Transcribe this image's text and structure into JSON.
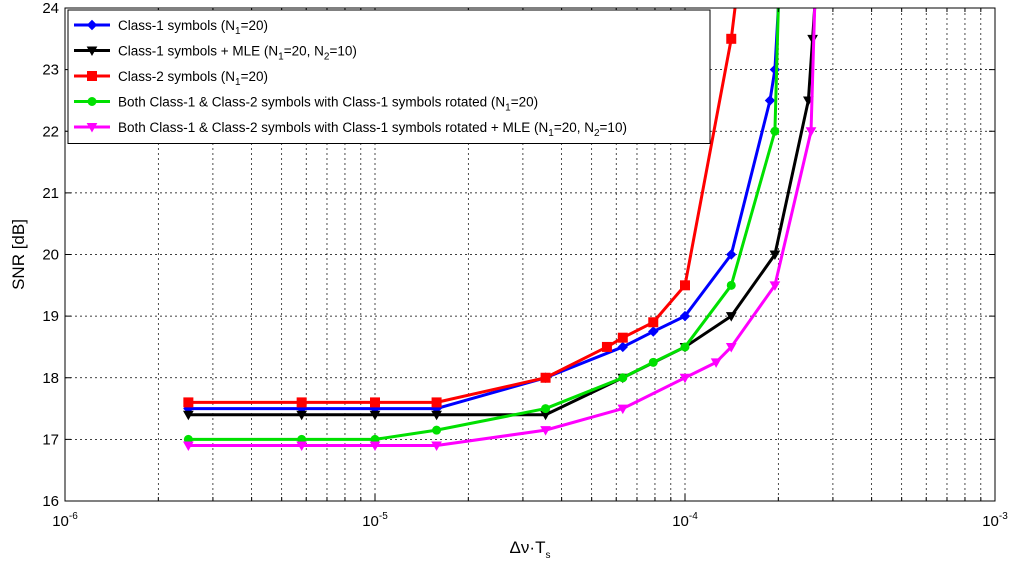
{
  "chart_data": {
    "type": "line",
    "title": "",
    "xlabel": {
      "main": "Δν·T",
      "sub": "s"
    },
    "ylabel": "SNR [dB]",
    "xscale": "log",
    "xlim": [
      1e-06,
      0.001
    ],
    "ylim": [
      16,
      24
    ],
    "grid": true,
    "legend_position": "top-left",
    "x_ticks": [
      {
        "value": 1e-06,
        "base": "10",
        "exp": "-6"
      },
      {
        "value": 1e-05,
        "base": "10",
        "exp": "-5"
      },
      {
        "value": 0.0001,
        "base": "10",
        "exp": "-4"
      },
      {
        "value": 0.001,
        "base": "10",
        "exp": "-3"
      }
    ],
    "y_ticks": [
      "16",
      "17",
      "18",
      "19",
      "20",
      "21",
      "22",
      "23",
      "24"
    ],
    "series": [
      {
        "legend": [
          [
            "Class-1 symbols (N",
            ""
          ],
          [
            "1",
            "sub"
          ],
          [
            "=20)",
            ""
          ]
        ],
        "color": "#0000ff",
        "marker": "diamond",
        "x": [
          2.5e-06,
          5.8e-06,
          1e-05,
          1.58e-05,
          3.55e-05,
          6.3e-05,
          7.9e-05,
          0.0001,
          0.000141,
          0.000188,
          0.000195,
          0.0002
        ],
        "y": [
          17.5,
          17.5,
          17.5,
          17.5,
          18.0,
          18.5,
          18.75,
          19.0,
          20.0,
          22.5,
          23.0,
          24.0
        ]
      },
      {
        "legend": [
          [
            "Class-1 symbols + MLE (N",
            ""
          ],
          [
            "1",
            "sub"
          ],
          [
            "=20, N",
            ""
          ],
          [
            "2",
            "sub"
          ],
          [
            "=10)",
            ""
          ]
        ],
        "color": "#000000",
        "marker": "triangle-down",
        "x": [
          2.5e-06,
          5.8e-06,
          1e-05,
          1.58e-05,
          3.55e-05,
          6.3e-05,
          0.0001,
          0.000141,
          0.000195,
          0.00025,
          0.000258,
          0.000262
        ],
        "y": [
          17.4,
          17.4,
          17.4,
          17.4,
          17.4,
          18.0,
          18.5,
          19.0,
          20.0,
          22.5,
          23.5,
          24.0
        ]
      },
      {
        "legend": [
          [
            "Class-2 symbols (N",
            ""
          ],
          [
            "1",
            "sub"
          ],
          [
            "=20)",
            ""
          ]
        ],
        "color": "#ff0000",
        "marker": "square",
        "x": [
          2.5e-06,
          5.8e-06,
          1e-05,
          1.58e-05,
          3.55e-05,
          5.6e-05,
          6.3e-05,
          7.9e-05,
          0.0001,
          0.000141,
          0.000145
        ],
        "y": [
          17.6,
          17.6,
          17.6,
          17.6,
          18.0,
          18.5,
          18.65,
          18.9,
          19.5,
          23.5,
          24.0
        ]
      },
      {
        "legend": [
          [
            "Both Class-1 & Class-2 symbols with Class-1 symbols rotated (N",
            ""
          ],
          [
            "1",
            "sub"
          ],
          [
            "=20)",
            ""
          ]
        ],
        "color": "#00e000",
        "marker": "circle",
        "x": [
          2.5e-06,
          5.8e-06,
          1e-05,
          1.58e-05,
          3.55e-05,
          6.3e-05,
          7.9e-05,
          0.0001,
          0.000141,
          0.000195,
          0.0002
        ],
        "y": [
          17.0,
          17.0,
          17.0,
          17.15,
          17.5,
          18.0,
          18.25,
          18.5,
          19.5,
          22.0,
          24.0
        ]
      },
      {
        "legend": [
          [
            "Both Class-1 & Class-2 symbols with Class-1 symbols rotated + MLE (N",
            ""
          ],
          [
            "1",
            "sub"
          ],
          [
            "=20, N",
            ""
          ],
          [
            "2",
            "sub"
          ],
          [
            "=10)",
            ""
          ]
        ],
        "color": "#ff00ff",
        "marker": "triangle-down",
        "x": [
          2.5e-06,
          5.8e-06,
          1e-05,
          1.58e-05,
          3.55e-05,
          6.3e-05,
          0.0001,
          0.000126,
          0.000141,
          0.000195,
          0.000255,
          0.000262
        ],
        "y": [
          16.9,
          16.9,
          16.9,
          16.9,
          17.15,
          17.5,
          18.0,
          18.25,
          18.5,
          19.5,
          22.0,
          24.0
        ]
      }
    ]
  }
}
